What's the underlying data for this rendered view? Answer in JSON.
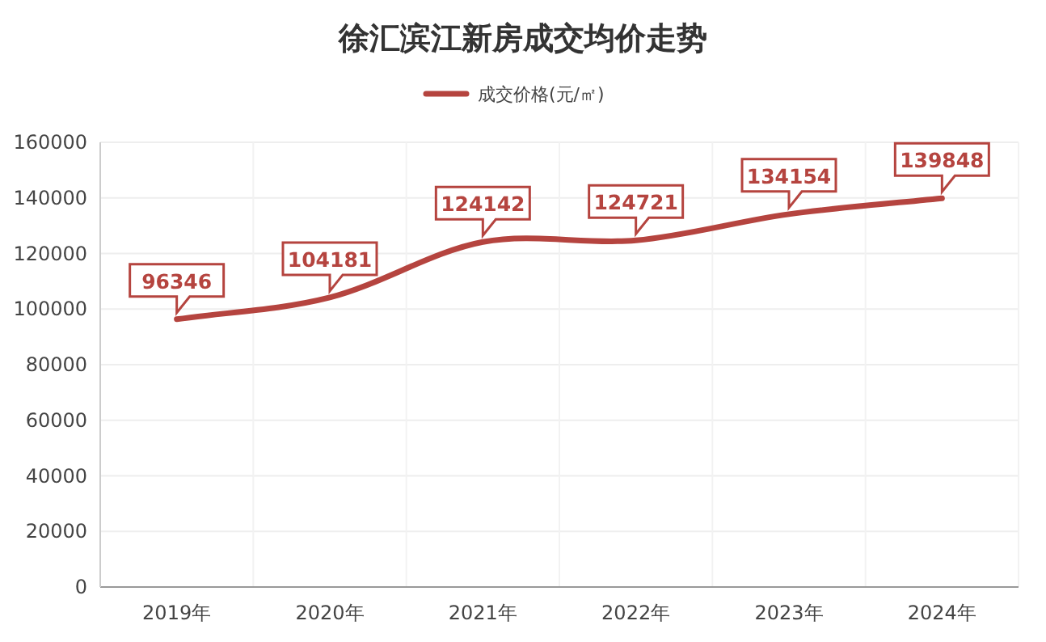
{
  "chart_data": {
    "type": "line",
    "title": "徐汇滨江新房成交均价走势",
    "categories": [
      "2019年",
      "2020年",
      "2021年",
      "2022年",
      "2023年",
      "2024年"
    ],
    "series": [
      {
        "name": "成交价格(元/㎡)",
        "color": "#b5443f",
        "values": [
          96346,
          104181,
          124142,
          124721,
          134154,
          139848
        ]
      }
    ],
    "ylim": [
      0,
      160000
    ],
    "yticks": [
      0,
      20000,
      40000,
      60000,
      80000,
      100000,
      120000,
      140000,
      160000
    ],
    "grid": true,
    "legend": "top",
    "data_labels": true
  }
}
